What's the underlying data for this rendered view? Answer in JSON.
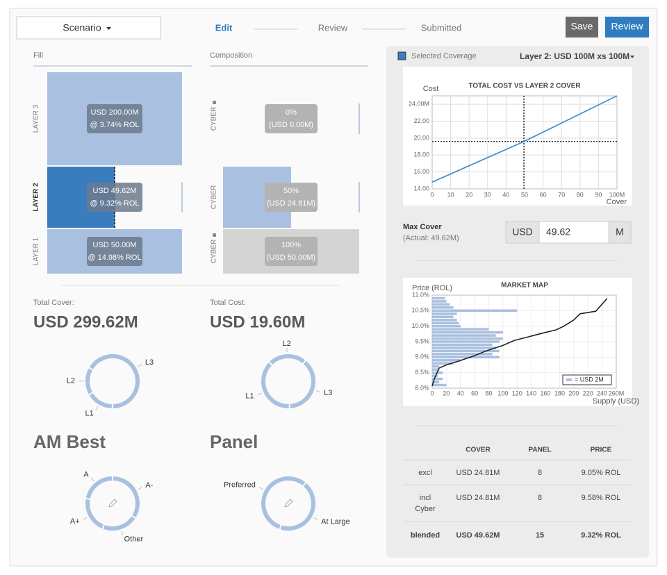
{
  "header": {
    "scenario": "Scenario",
    "steps": [
      "Edit",
      "Review",
      "Submitted"
    ],
    "buttons": [
      "Save",
      "Review"
    ]
  },
  "fill": {
    "title": "Fill",
    "layers": [
      "LAYER 3",
      "LAYER 2",
      "LAYER 1"
    ],
    "values": [
      100,
      50,
      100
    ],
    "amounts": [
      "USD 200.00M",
      "USD 49.62M",
      "USD 50.00M"
    ],
    "rates": [
      "@ 3.74% ROL",
      "@ 9.32% ROL",
      "@ 14.98% ROL"
    ],
    "color": "#a9c0e0",
    "selected_color": "#3a7dbf"
  },
  "composition": {
    "title": "Composition",
    "labels": [
      "CYBER",
      "CYBER",
      "CYBER"
    ],
    "values": [
      0,
      50,
      100
    ],
    "value_labels": [
      "0%",
      "50%",
      "100%"
    ],
    "amounts": [
      "(USD 0.00M)",
      "(USD 24.81M)",
      "(USD 50.00M)"
    ],
    "color": "#d4d4d4",
    "selected_color": "#a9c0e0"
  },
  "totals": {
    "cover_label": "Total Cover:",
    "cover": "USD 299.62M",
    "cost_label": "Total Cost:",
    "cost": "USD 19.60M"
  },
  "selection": {
    "legend": "Selected Coverage",
    "layer": "Layer 2: USD 100M xs 100M",
    "color": "#3a7dbf"
  },
  "max_cover": {
    "label": "Max Cover",
    "actual": "(Actual: 49.62M)",
    "currency": "USD",
    "value": "49.62",
    "unit": "M"
  },
  "table": {
    "columns": [
      "COVER",
      "PANEL",
      "PRICE"
    ],
    "rows": [
      [
        "excl",
        "USD 24.81M",
        "8",
        "9.05% ROL"
      ],
      [
        [
          "incl",
          "Cyber"
        ],
        "USD 24.81M",
        "8",
        "9.58% ROL"
      ],
      [
        "blended",
        "USD 49.62M",
        "15",
        "9.32% ROL"
      ]
    ]
  },
  "chart_data": [
    {
      "type": "donut",
      "categories": [
        "L3",
        "L1",
        "L2"
      ],
      "values": [
        200,
        50,
        49.62
      ],
      "color": "#a9c0e0"
    },
    {
      "type": "donut",
      "categories": [
        "L2",
        "L3",
        "L1"
      ],
      "values": [
        4.62,
        7.48,
        7.49
      ],
      "color": "#a9c0e0"
    },
    {
      "type": "donut",
      "title": "AM Best",
      "categories": [
        "A-",
        "Other",
        "A+",
        "A"
      ],
      "values": [
        34,
        22,
        22,
        22
      ],
      "color": "#a9c0e0"
    },
    {
      "type": "donut",
      "title": "Panel",
      "categories": [
        "At Large",
        "Preferred"
      ],
      "values": [
        44,
        56
      ],
      "color": "#a9c0e0"
    },
    {
      "type": "line",
      "title": "TOTAL COST VS LAYER 2 COVER",
      "ylabel": "Cost",
      "xlabel": "Cover",
      "x": [
        0,
        49.62,
        100
      ],
      "series": [
        {
          "color": "#4a90c8",
          "values": [
            14.8,
            19.6,
            25.0
          ]
        }
      ],
      "xlim": [
        0,
        100
      ],
      "ylim": [
        14,
        25
      ],
      "xticks": [
        0,
        10,
        20,
        30,
        40,
        50,
        60,
        70,
        80,
        90,
        {
          "value": 100,
          "label": "100M"
        }
      ],
      "yticks": [
        {
          "value": 14,
          "label": "14.00"
        },
        {
          "value": 16,
          "label": "16.00"
        },
        {
          "value": 18,
          "label": "18.00"
        },
        {
          "value": 20,
          "label": "20.00"
        },
        {
          "value": 22,
          "label": "22.00"
        },
        {
          "value": 24,
          "label": "24.00M"
        }
      ],
      "grid": true,
      "crosshair": {
        "x": 49.62,
        "y": 19.6
      }
    },
    {
      "type": "market-map",
      "title": "MARKET MAP",
      "ylabel": "Price (ROL)",
      "xlabel": "Supply (USD)",
      "xlim": [
        0,
        260
      ],
      "ylim": [
        8,
        11
      ],
      "xticks": [
        0,
        20,
        40,
        60,
        80,
        100,
        120,
        140,
        160,
        180,
        200,
        220,
        240,
        {
          "value": 260,
          "label": "260M"
        }
      ],
      "yticks": [
        {
          "value": 8,
          "label": "8.0%"
        },
        {
          "value": 8.5,
          "label": "8.5%"
        },
        {
          "value": 9,
          "label": "9.0%"
        },
        {
          "value": 9.5,
          "label": "9.5%"
        },
        {
          "value": 10,
          "label": "10.0%"
        },
        {
          "value": 10.5,
          "label": "10.5%"
        },
        {
          "value": 11,
          "label": "11.0%"
        }
      ],
      "grid": true,
      "bars": {
        "color": "#a9c0e0",
        "price": [
          8.1,
          8.2,
          8.3,
          8.4,
          8.5,
          8.6,
          8.7,
          8.8,
          8.9,
          9.0,
          9.1,
          9.2,
          9.3,
          9.4,
          9.5,
          9.6,
          9.7,
          9.8,
          9.9,
          10.0,
          10.1,
          10.2,
          10.3,
          10.4,
          10.5,
          10.6,
          10.7,
          10.8,
          10.9
        ],
        "supply": [
          20,
          10,
          15,
          8,
          15,
          10,
          10,
          30,
          40,
          95,
          85,
          95,
          90,
          85,
          95,
          100,
          90,
          100,
          80,
          40,
          38,
          35,
          30,
          35,
          120,
          30,
          25,
          20,
          18
        ]
      },
      "curve": {
        "color": "#222222",
        "x": [
          0,
          3,
          10,
          20,
          37,
          60,
          76,
          100,
          116,
          140,
          155,
          175,
          186,
          200,
          209,
          231,
          238,
          247
        ],
        "y": [
          8.07,
          8.3,
          8.65,
          8.75,
          8.87,
          9.05,
          9.2,
          9.38,
          9.54,
          9.68,
          9.77,
          9.88,
          10.0,
          10.2,
          10.4,
          10.48,
          10.66,
          10.89
        ]
      },
      "legend": "= USD 2M",
      "legend_corner": "lower right"
    }
  ]
}
